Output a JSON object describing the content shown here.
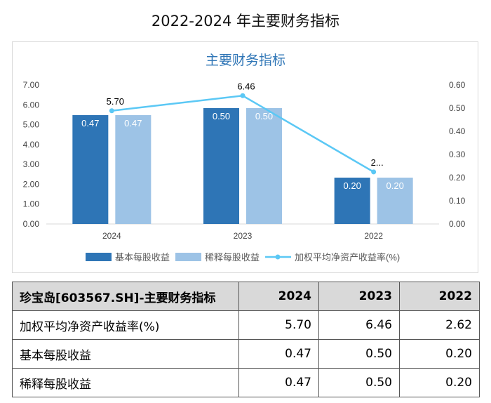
{
  "page": {
    "title": "2022-2024 年主要财务指标"
  },
  "chart_data": {
    "type": "bar",
    "title": "主要财务指标",
    "categories": [
      "2024",
      "2023",
      "2022"
    ],
    "y_left": {
      "min": 0,
      "max": 7,
      "ticks": [
        "0.00",
        "1.00",
        "2.00",
        "3.00",
        "4.00",
        "5.00",
        "6.00",
        "7.00"
      ]
    },
    "y_right": {
      "min": 0,
      "max": 0.6,
      "ticks": [
        "0.00",
        "0.10",
        "0.20",
        "0.30",
        "0.40",
        "0.50",
        "0.60"
      ]
    },
    "grid": false,
    "legend_position": "bottom",
    "series": [
      {
        "name": "基本每股收益",
        "type": "bar",
        "axis": "right",
        "color": "#2e75b6",
        "values": [
          0.47,
          0.5,
          0.2
        ],
        "labels": [
          "0.47",
          "0.50",
          "0.20"
        ]
      },
      {
        "name": "稀释每股收益",
        "type": "bar",
        "axis": "right",
        "color": "#9dc3e6",
        "values": [
          0.47,
          0.5,
          0.2
        ],
        "labels": [
          "0.47",
          "0.50",
          "0.20"
        ]
      },
      {
        "name": "加权平均净资产收益率(%)",
        "type": "line",
        "axis": "left",
        "color": "#5bc8f5",
        "values": [
          5.7,
          6.46,
          2.62
        ],
        "labels": [
          "5.70",
          "6.46",
          "2..."
        ]
      }
    ]
  },
  "table": {
    "header": [
      "珍宝岛[603567.SH]-主要财务指标",
      "2024",
      "2023",
      "2022"
    ],
    "rows": [
      [
        "加权平均净资产收益率(%)",
        "5.70",
        "6.46",
        "2.62"
      ],
      [
        "基本每股收益",
        "0.47",
        "0.50",
        "0.20"
      ],
      [
        "稀释每股收益",
        "0.47",
        "0.50",
        "0.20"
      ]
    ]
  }
}
